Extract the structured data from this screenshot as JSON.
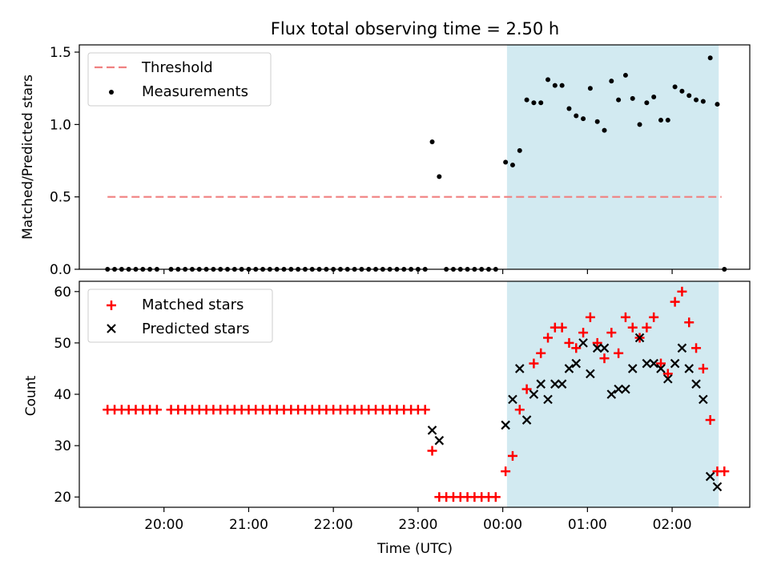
{
  "figure": {
    "title": "Flux total observing time = 2.50 h"
  },
  "chart_data": [
    {
      "type": "scatter",
      "panel": "top",
      "ylabel": "Matched/Predicted stars",
      "xlabel": "",
      "ylim": [
        0,
        1.55
      ],
      "yticks": [
        "0.0",
        "0.5",
        "1.0",
        "1.5"
      ],
      "ytick_values": [
        0,
        0.5,
        1.0,
        1.5
      ],
      "threshold": {
        "name": "Threshold",
        "value": 0.5,
        "x_range": [
          "19:20",
          "02:35"
        ],
        "color": "#f08080"
      },
      "legend": {
        "placement": "upper left",
        "entries": [
          "Threshold",
          "Measurements"
        ]
      },
      "shaded_region": {
        "x_range": [
          "00:03",
          "02:33"
        ],
        "color": "#add8e6"
      },
      "series": [
        {
          "name": "Measurements",
          "marker": "dot",
          "color": "#000000",
          "points": [
            [
              "19:20",
              0
            ],
            [
              "19:25",
              0
            ],
            [
              "19:30",
              0
            ],
            [
              "19:35",
              0
            ],
            [
              "19:40",
              0
            ],
            [
              "19:45",
              0
            ],
            [
              "19:50",
              0
            ],
            [
              "19:55",
              0
            ],
            [
              "20:05",
              0
            ],
            [
              "20:10",
              0
            ],
            [
              "20:15",
              0
            ],
            [
              "20:20",
              0
            ],
            [
              "20:25",
              0
            ],
            [
              "20:30",
              0
            ],
            [
              "20:35",
              0
            ],
            [
              "20:40",
              0
            ],
            [
              "20:45",
              0
            ],
            [
              "20:50",
              0
            ],
            [
              "20:55",
              0
            ],
            [
              "21:00",
              0
            ],
            [
              "21:05",
              0
            ],
            [
              "21:10",
              0
            ],
            [
              "21:15",
              0
            ],
            [
              "21:20",
              0
            ],
            [
              "21:25",
              0
            ],
            [
              "21:30",
              0
            ],
            [
              "21:35",
              0
            ],
            [
              "21:40",
              0
            ],
            [
              "21:45",
              0
            ],
            [
              "21:50",
              0
            ],
            [
              "21:55",
              0
            ],
            [
              "22:00",
              0
            ],
            [
              "22:05",
              0
            ],
            [
              "22:10",
              0
            ],
            [
              "22:15",
              0
            ],
            [
              "22:20",
              0
            ],
            [
              "22:25",
              0
            ],
            [
              "22:30",
              0
            ],
            [
              "22:35",
              0
            ],
            [
              "22:40",
              0
            ],
            [
              "22:45",
              0
            ],
            [
              "22:50",
              0
            ],
            [
              "22:55",
              0
            ],
            [
              "23:00",
              0
            ],
            [
              "23:05",
              0
            ],
            [
              "23:10",
              0.88
            ],
            [
              "23:15",
              0.64
            ],
            [
              "23:20",
              0
            ],
            [
              "23:25",
              0
            ],
            [
              "23:30",
              0
            ],
            [
              "23:35",
              0
            ],
            [
              "23:40",
              0
            ],
            [
              "23:45",
              0
            ],
            [
              "23:50",
              0
            ],
            [
              "23:55",
              0
            ],
            [
              "00:02",
              0.74
            ],
            [
              "00:07",
              0.72
            ],
            [
              "00:12",
              0.82
            ],
            [
              "00:17",
              1.17
            ],
            [
              "00:22",
              1.15
            ],
            [
              "00:27",
              1.15
            ],
            [
              "00:32",
              1.31
            ],
            [
              "00:37",
              1.27
            ],
            [
              "00:42",
              1.27
            ],
            [
              "00:47",
              1.11
            ],
            [
              "00:52",
              1.06
            ],
            [
              "00:57",
              1.04
            ],
            [
              "01:02",
              1.25
            ],
            [
              "01:07",
              1.02
            ],
            [
              "01:12",
              0.96
            ],
            [
              "01:17",
              1.3
            ],
            [
              "01:22",
              1.17
            ],
            [
              "01:27",
              1.34
            ],
            [
              "01:32",
              1.18
            ],
            [
              "01:37",
              1.0
            ],
            [
              "01:42",
              1.15
            ],
            [
              "01:47",
              1.19
            ],
            [
              "01:52",
              1.03
            ],
            [
              "01:57",
              1.03
            ],
            [
              "02:02",
              1.26
            ],
            [
              "02:07",
              1.23
            ],
            [
              "02:12",
              1.2
            ],
            [
              "02:17",
              1.17
            ],
            [
              "02:22",
              1.16
            ],
            [
              "02:27",
              1.46
            ],
            [
              "02:32",
              1.14
            ],
            [
              "02:37",
              0
            ]
          ]
        }
      ]
    },
    {
      "type": "scatter",
      "panel": "bottom",
      "xlabel": "Time (UTC)",
      "ylabel": "Count",
      "ylim": [
        18,
        62
      ],
      "yticks": [
        "20",
        "30",
        "40",
        "50",
        "60"
      ],
      "ytick_values": [
        20,
        30,
        40,
        50,
        60
      ],
      "xlim": [
        "19:00",
        "02:55"
      ],
      "xticks": [
        "20:00",
        "21:00",
        "22:00",
        "23:00",
        "00:00",
        "01:00",
        "02:00"
      ],
      "legend": {
        "placement": "upper left",
        "entries": [
          "Matched stars",
          "Predicted stars"
        ]
      },
      "shaded_region": {
        "x_range": [
          "00:03",
          "02:33"
        ],
        "color": "#add8e6"
      },
      "series": [
        {
          "name": "Matched stars",
          "marker": "plus",
          "color": "#ff0000",
          "points": [
            [
              "19:20",
              37
            ],
            [
              "19:25",
              37
            ],
            [
              "19:30",
              37
            ],
            [
              "19:35",
              37
            ],
            [
              "19:40",
              37
            ],
            [
              "19:45",
              37
            ],
            [
              "19:50",
              37
            ],
            [
              "19:55",
              37
            ],
            [
              "20:05",
              37
            ],
            [
              "20:10",
              37
            ],
            [
              "20:15",
              37
            ],
            [
              "20:20",
              37
            ],
            [
              "20:25",
              37
            ],
            [
              "20:30",
              37
            ],
            [
              "20:35",
              37
            ],
            [
              "20:40",
              37
            ],
            [
              "20:45",
              37
            ],
            [
              "20:50",
              37
            ],
            [
              "20:55",
              37
            ],
            [
              "21:00",
              37
            ],
            [
              "21:05",
              37
            ],
            [
              "21:10",
              37
            ],
            [
              "21:15",
              37
            ],
            [
              "21:20",
              37
            ],
            [
              "21:25",
              37
            ],
            [
              "21:30",
              37
            ],
            [
              "21:35",
              37
            ],
            [
              "21:40",
              37
            ],
            [
              "21:45",
              37
            ],
            [
              "21:50",
              37
            ],
            [
              "21:55",
              37
            ],
            [
              "22:00",
              37
            ],
            [
              "22:05",
              37
            ],
            [
              "22:10",
              37
            ],
            [
              "22:15",
              37
            ],
            [
              "22:20",
              37
            ],
            [
              "22:25",
              37
            ],
            [
              "22:30",
              37
            ],
            [
              "22:35",
              37
            ],
            [
              "22:40",
              37
            ],
            [
              "22:45",
              37
            ],
            [
              "22:50",
              37
            ],
            [
              "22:55",
              37
            ],
            [
              "23:00",
              37
            ],
            [
              "23:05",
              37
            ],
            [
              "23:10",
              29
            ],
            [
              "23:15",
              20
            ],
            [
              "23:20",
              20
            ],
            [
              "23:25",
              20
            ],
            [
              "23:30",
              20
            ],
            [
              "23:35",
              20
            ],
            [
              "23:40",
              20
            ],
            [
              "23:45",
              20
            ],
            [
              "23:50",
              20
            ],
            [
              "23:55",
              20
            ],
            [
              "00:02",
              25
            ],
            [
              "00:07",
              28
            ],
            [
              "00:12",
              37
            ],
            [
              "00:17",
              41
            ],
            [
              "00:22",
              46
            ],
            [
              "00:27",
              48
            ],
            [
              "00:32",
              51
            ],
            [
              "00:37",
              53
            ],
            [
              "00:42",
              53
            ],
            [
              "00:47",
              50
            ],
            [
              "00:52",
              49
            ],
            [
              "00:57",
              52
            ],
            [
              "01:02",
              55
            ],
            [
              "01:07",
              50
            ],
            [
              "01:12",
              47
            ],
            [
              "01:17",
              52
            ],
            [
              "01:22",
              48
            ],
            [
              "01:27",
              55
            ],
            [
              "01:32",
              53
            ],
            [
              "01:37",
              51
            ],
            [
              "01:42",
              53
            ],
            [
              "01:47",
              55
            ],
            [
              "01:52",
              46
            ],
            [
              "01:57",
              44
            ],
            [
              "02:02",
              58
            ],
            [
              "02:07",
              60
            ],
            [
              "02:12",
              54
            ],
            [
              "02:17",
              49
            ],
            [
              "02:22",
              45
            ],
            [
              "02:27",
              35
            ],
            [
              "02:32",
              25
            ],
            [
              "02:37",
              25
            ]
          ]
        },
        {
          "name": "Predicted stars",
          "marker": "x",
          "color": "#000000",
          "points": [
            [
              "23:10",
              33
            ],
            [
              "23:15",
              31
            ],
            [
              "00:02",
              34
            ],
            [
              "00:07",
              39
            ],
            [
              "00:12",
              45
            ],
            [
              "00:17",
              35
            ],
            [
              "00:22",
              40
            ],
            [
              "00:27",
              42
            ],
            [
              "00:32",
              39
            ],
            [
              "00:37",
              42
            ],
            [
              "00:42",
              42
            ],
            [
              "00:47",
              45
            ],
            [
              "00:52",
              46
            ],
            [
              "00:57",
              50
            ],
            [
              "01:02",
              44
            ],
            [
              "01:07",
              49
            ],
            [
              "01:12",
              49
            ],
            [
              "01:17",
              40
            ],
            [
              "01:22",
              41
            ],
            [
              "01:27",
              41
            ],
            [
              "01:32",
              45
            ],
            [
              "01:37",
              51
            ],
            [
              "01:42",
              46
            ],
            [
              "01:47",
              46
            ],
            [
              "01:52",
              45
            ],
            [
              "01:57",
              43
            ],
            [
              "02:02",
              46
            ],
            [
              "02:07",
              49
            ],
            [
              "02:12",
              45
            ],
            [
              "02:17",
              42
            ],
            [
              "02:22",
              39
            ],
            [
              "02:27",
              24
            ],
            [
              "02:32",
              22
            ]
          ]
        }
      ]
    }
  ]
}
